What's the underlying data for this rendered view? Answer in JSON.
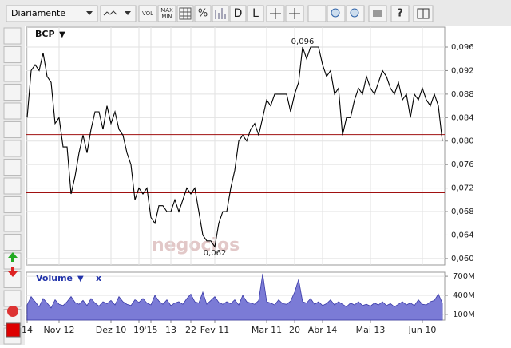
{
  "toolbar": {
    "period": "Diariamente",
    "vol": "VOL",
    "max": "MAX",
    "min": "MIN",
    "percent": "%",
    "d": "D",
    "l": "L",
    "help": "?"
  },
  "watermark": "negocios",
  "chart_data": [
    {
      "type": "line",
      "title": "BCP",
      "title_icon": "▼",
      "color": "#000000",
      "grid": true,
      "categories": [
        "14",
        null,
        null,
        null,
        null,
        null,
        null,
        null,
        "Nov 12",
        null,
        null,
        null,
        null,
        null,
        null,
        null,
        null,
        null,
        null,
        null,
        null,
        "Dez 10",
        null,
        null,
        null,
        null,
        null,
        null,
        "19",
        null,
        null,
        "'15",
        null,
        null,
        null,
        null,
        "13",
        null,
        null,
        null,
        null,
        "22",
        null,
        null,
        null,
        null,
        null,
        "Fev 11",
        null,
        null,
        null,
        null,
        null,
        null,
        null,
        null,
        null,
        null,
        null,
        null,
        "Mar 11",
        null,
        null,
        null,
        null,
        null,
        null,
        "20",
        null,
        null,
        null,
        null,
        null,
        null,
        "Abr 14",
        null,
        null,
        null,
        null,
        null,
        null,
        null,
        null,
        null,
        null,
        null,
        "Mai 13",
        null,
        null,
        null,
        null,
        null,
        null,
        null,
        null,
        null,
        null,
        null,
        null,
        "Jun 10",
        null,
        null,
        null,
        null,
        null
      ],
      "values": [
        0.084,
        0.092,
        0.093,
        0.092,
        0.095,
        0.091,
        0.09,
        0.083,
        0.084,
        0.079,
        0.079,
        0.071,
        0.074,
        0.078,
        0.081,
        0.078,
        0.082,
        0.085,
        0.085,
        0.082,
        0.086,
        0.083,
        0.085,
        0.082,
        0.081,
        0.078,
        0.076,
        0.07,
        0.072,
        0.071,
        0.072,
        0.067,
        0.066,
        0.069,
        0.069,
        0.068,
        0.068,
        0.07,
        0.068,
        0.07,
        0.072,
        0.071,
        0.072,
        0.068,
        0.064,
        0.063,
        0.063,
        0.062,
        0.066,
        0.068,
        0.068,
        0.072,
        0.075,
        0.08,
        0.081,
        0.08,
        0.082,
        0.083,
        0.081,
        0.084,
        0.087,
        0.086,
        0.088,
        0.088,
        0.088,
        0.088,
        0.085,
        0.088,
        0.09,
        0.096,
        0.094,
        0.096,
        0.096,
        0.096,
        0.093,
        0.091,
        0.092,
        0.088,
        0.089,
        0.081,
        0.084,
        0.084,
        0.087,
        0.089,
        0.088,
        0.091,
        0.089,
        0.088,
        0.09,
        0.092,
        0.091,
        0.089,
        0.088,
        0.09,
        0.087,
        0.088,
        0.084,
        0.088,
        0.087,
        0.089,
        0.087,
        0.086,
        0.088,
        0.086,
        0.08
      ],
      "value_labels": [
        null,
        null,
        null,
        null,
        null,
        null,
        null,
        null,
        null,
        null,
        null,
        null,
        null,
        null,
        null,
        null,
        null,
        null,
        null,
        null,
        null,
        null,
        null,
        null,
        null,
        null,
        null,
        null,
        null,
        null,
        null,
        null,
        null,
        null,
        null,
        null,
        null,
        null,
        null,
        null,
        null,
        null,
        null,
        null,
        null,
        null,
        null,
        "0,062",
        null,
        null,
        null,
        null,
        null,
        null,
        null,
        null,
        null,
        null,
        null,
        null,
        null,
        null,
        null,
        null,
        null,
        null,
        null,
        null,
        null,
        "0,096",
        null,
        null,
        null,
        null,
        null,
        null,
        null,
        null,
        null,
        null,
        null,
        null,
        null,
        null,
        null,
        null,
        null,
        null,
        null,
        null,
        null,
        null,
        null,
        null,
        null,
        null,
        null,
        null,
        null,
        null,
        null,
        null,
        null,
        null,
        null
      ],
      "ylim": [
        0.0589,
        0.0994
      ],
      "yticks": [
        {
          "value": 0.096,
          "label": "0,096"
        },
        {
          "value": 0.092,
          "label": "0,092"
        },
        {
          "value": 0.088,
          "label": "0,088"
        },
        {
          "value": 0.084,
          "label": "0,084"
        },
        {
          "value": 0.08,
          "label": "0,080"
        },
        {
          "value": 0.076,
          "label": "0,076"
        },
        {
          "value": 0.072,
          "label": "0,072"
        },
        {
          "value": 0.068,
          "label": "0,068"
        },
        {
          "value": 0.064,
          "label": "0,064"
        },
        {
          "value": 0.06,
          "label": "0,060"
        }
      ],
      "hlines": [
        0.0811,
        0.0712
      ],
      "hline_color": "#a01010"
    },
    {
      "type": "area",
      "title": "Volume",
      "title_icon": "▼",
      "close_icon": "x",
      "color": "#7b7bd6",
      "values": [
        250,
        380,
        300,
        220,
        350,
        280,
        200,
        330,
        260,
        240,
        300,
        380,
        290,
        260,
        320,
        240,
        350,
        280,
        230,
        300,
        270,
        320,
        250,
        380,
        300,
        260,
        240,
        330,
        290,
        350,
        280,
        250,
        400,
        310,
        260,
        330,
        240,
        280,
        300,
        260,
        350,
        420,
        300,
        280,
        450,
        260,
        320,
        380,
        290,
        260,
        300,
        270,
        330,
        250,
        400,
        300,
        280,
        260,
        320,
        740,
        300,
        280,
        250,
        330,
        270,
        260,
        310,
        450,
        650,
        300,
        280,
        350,
        260,
        300,
        240,
        270,
        330,
        250,
        300,
        260,
        220,
        280,
        250,
        300,
        240,
        260,
        230,
        280,
        250,
        300,
        240,
        270,
        220,
        260,
        300,
        250,
        280,
        240,
        330,
        260,
        250,
        300,
        320,
        420,
        280
      ],
      "ylim": [
        11,
        764
      ],
      "yticks": [
        {
          "value": 700,
          "label": "700M"
        },
        {
          "value": 400,
          "label": "400M"
        },
        {
          "value": 100,
          "label": "100M"
        }
      ]
    }
  ]
}
